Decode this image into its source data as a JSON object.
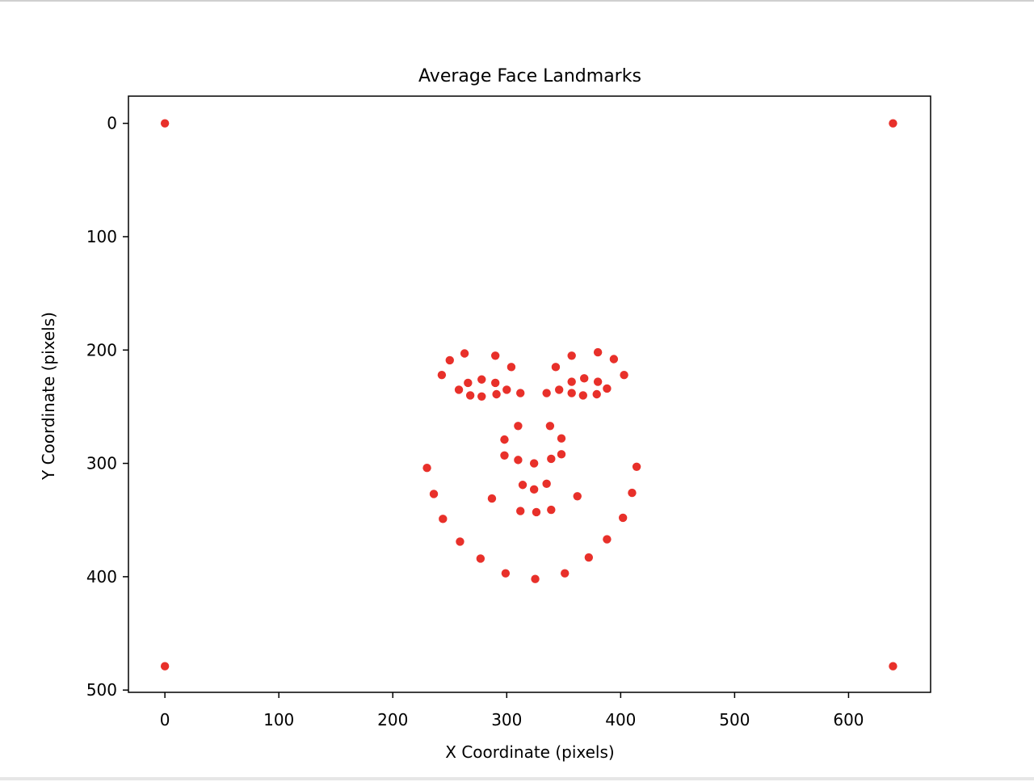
{
  "chart_data": {
    "type": "scatter",
    "title": "Average Face Landmarks",
    "xlabel": "X Coordinate (pixels)",
    "ylabel": "Y Coordinate (pixels)",
    "xlim": [
      -32,
      672
    ],
    "ylim": [
      -24,
      502
    ],
    "y_inverted": true,
    "grid": false,
    "xticks": [
      0,
      100,
      200,
      300,
      400,
      500,
      600
    ],
    "yticks": [
      0,
      100,
      200,
      300,
      400,
      500
    ],
    "xtick_labels": [
      "0",
      "100",
      "200",
      "300",
      "400",
      "500",
      "600"
    ],
    "ytick_labels": [
      "0",
      "100",
      "200",
      "300",
      "400",
      "500"
    ],
    "marker_color": "#e8302a",
    "series": [
      {
        "points": [
          [
            0,
            0
          ],
          [
            639,
            0
          ],
          [
            0,
            479
          ],
          [
            639,
            479
          ],
          [
            230,
            304
          ],
          [
            236,
            327
          ],
          [
            244,
            349
          ],
          [
            259,
            369
          ],
          [
            277,
            384
          ],
          [
            299,
            397
          ],
          [
            325,
            402
          ],
          [
            351,
            397
          ],
          [
            372,
            383
          ],
          [
            388,
            367
          ],
          [
            402,
            348
          ],
          [
            410,
            326
          ],
          [
            414,
            303
          ],
          [
            243,
            222
          ],
          [
            250,
            209
          ],
          [
            263,
            203
          ],
          [
            290,
            205
          ],
          [
            304,
            215
          ],
          [
            343,
            215
          ],
          [
            357,
            205
          ],
          [
            380,
            202
          ],
          [
            394,
            208
          ],
          [
            403,
            222
          ],
          [
            258,
            235
          ],
          [
            266,
            229
          ],
          [
            278,
            226
          ],
          [
            290,
            229
          ],
          [
            300,
            235
          ],
          [
            312,
            238
          ],
          [
            268,
            240
          ],
          [
            278,
            241
          ],
          [
            291,
            239
          ],
          [
            335,
            238
          ],
          [
            346,
            235
          ],
          [
            357,
            228
          ],
          [
            368,
            225
          ],
          [
            380,
            228
          ],
          [
            388,
            234
          ],
          [
            357,
            238
          ],
          [
            367,
            240
          ],
          [
            379,
            239
          ],
          [
            310,
            267
          ],
          [
            338,
            267
          ],
          [
            298,
            279
          ],
          [
            348,
            278
          ],
          [
            298,
            293
          ],
          [
            310,
            297
          ],
          [
            324,
            300
          ],
          [
            339,
            296
          ],
          [
            348,
            292
          ],
          [
            287,
            331
          ],
          [
            314,
            319
          ],
          [
            324,
            323
          ],
          [
            335,
            318
          ],
          [
            362,
            329
          ],
          [
            312,
            342
          ],
          [
            326,
            343
          ],
          [
            339,
            341
          ]
        ]
      }
    ]
  }
}
